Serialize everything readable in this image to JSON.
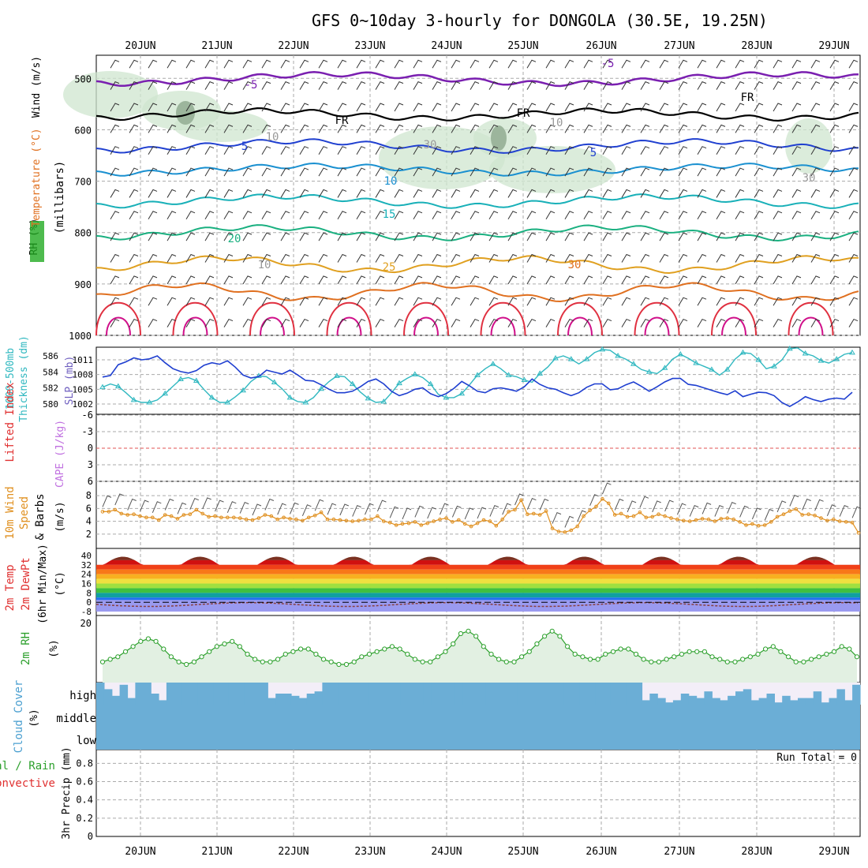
{
  "title": "GFS 0~10day 3-hourly for DONGOLA (30.5E, 19.25N)",
  "x_axis": {
    "dates": [
      "20JUN",
      "21JUN",
      "22JUN",
      "23JUN",
      "24JUN",
      "25JUN",
      "26JUN",
      "27JUN",
      "28JUN",
      "29JUN"
    ]
  },
  "colors": {
    "temp_cold": "#7a1fb0",
    "fr": "#000000",
    "rh": "#c8e6c8",
    "slp": "#1f3fd0",
    "thick": "#30b8c0",
    "wind10": "#e09020",
    "rh2m": "#2ca02c",
    "cloud": "#6baed6"
  },
  "panels": {
    "upper": {
      "labels": {
        "rh": "RH (%)",
        "temp": "Temperature (°C)",
        "wind": "Wind (m/s)",
        "mb": "(millibars)"
      },
      "levels": [
        "500",
        "600",
        "700",
        "800",
        "900",
        "1000"
      ],
      "contour_labels": [
        "-5",
        "-5",
        "FR",
        "FR",
        "FR",
        "5",
        "5",
        "10",
        "15",
        "20",
        "25",
        "30",
        "10",
        "10",
        "30",
        "10",
        "30"
      ]
    },
    "slp": {
      "labels": {
        "thick": "1000-500mb",
        "thick2": "Thickness (dm)",
        "slp": "SLP (mb)"
      },
      "thick_ticks": [
        "586",
        "584",
        "582",
        "580"
      ],
      "slp_ticks": [
        "1011",
        "1008",
        "1005",
        "1002"
      ]
    },
    "li": {
      "labels": {
        "li": "Lifted Index",
        "cape": "CAPE (J/kg)"
      },
      "ticks": [
        "-6",
        "-3",
        "0",
        "3",
        "6"
      ]
    },
    "wind10": {
      "labels": {
        "a": "10m Wind",
        "b": "Speed",
        "c": "& Barbs",
        "unit": "(m/s)"
      },
      "ticks": [
        "8",
        "6",
        "4",
        "2"
      ]
    },
    "t2m": {
      "labels": {
        "a": "2m Temp",
        "b": "2m DewPt",
        "c": "(6hr Min/Max)",
        "unit": "(°C)"
      },
      "ticks": [
        "40",
        "32",
        "24",
        "16",
        "8",
        "0",
        "-8"
      ]
    },
    "rh2m": {
      "labels": {
        "a": "2m RH",
        "unit": "(%)"
      },
      "ticks": [
        "20"
      ]
    },
    "cloud": {
      "labels": {
        "a": "Cloud Cover",
        "unit": "(%)"
      },
      "levels": [
        "high",
        "middle",
        "low"
      ]
    },
    "precip": {
      "labels": {
        "a": "Total / Rain",
        "b": "Convective",
        "c": "3hr Precip (mm)"
      },
      "ticks": [
        "0.8",
        "0.6",
        "0.4",
        "0.2",
        "0"
      ],
      "run_total": "Run Total = 0"
    }
  },
  "chart_data": [
    {
      "type": "line",
      "name_panel": "SLP / Thickness",
      "x_step_hours": 3,
      "series": [
        {
          "name": "SLP (mb)",
          "values": [
            1007.5,
            1007.8,
            1010,
            1010.6,
            1011.4,
            1011,
            1011.2,
            1011.8,
            1010.4,
            1009.2,
            1008.6,
            1008.3,
            1008.8,
            1009.9,
            1010.4,
            1010.1,
            1010.8,
            1009.5,
            1007.9,
            1007.3,
            1007.6,
            1008.9,
            1008.5,
            1008.1,
            1008.9,
            1007.9,
            1006.8,
            1006.7,
            1005.9,
            1005.0,
            1004.3,
            1004.3,
            1004.6,
            1005.5,
            1006.6,
            1007.1,
            1006.1,
            1004.6,
            1003.7,
            1004.2,
            1005.0,
            1005.3,
            1004.1,
            1003.5,
            1004.1,
            1005.2,
            1006.6,
            1005.7,
            1004.6,
            1004.3,
            1005.1,
            1005.3,
            1005.0,
            1004.6,
            1005.5,
            1007.1,
            1006.0,
            1005.3,
            1005.0,
            1004.3,
            1003.7,
            1004.3,
            1005.4,
            1006.1,
            1006.1,
            1004.9,
            1005.1,
            1005.9,
            1006.5,
            1005.6,
            1004.6,
            1005.5,
            1006.5,
            1007.2,
            1007.2,
            1006.0,
            1005.8,
            1005.3,
            1004.8,
            1004.3,
            1003.9,
            1004.7,
            1003.5,
            1004.0,
            1004.4,
            1004.3,
            1003.7,
            1002.3,
            1001.5,
            1002.4,
            1003.5,
            1002.9,
            1002.5,
            1003.0,
            1003.2,
            1003.0,
            1004.4
          ]
        },
        {
          "name": "1000-500mb Thickness (dm)",
          "values": [
            582.1,
            582.5,
            582.2,
            581.4,
            580.5,
            580.2,
            580.2,
            580.5,
            581.3,
            582.2,
            583.1,
            583.3,
            582.9,
            581.8,
            580.8,
            580.2,
            580.2,
            580.9,
            581.7,
            582.8,
            583.5,
            583.4,
            582.7,
            581.9,
            580.8,
            580.3,
            580.2,
            580.8,
            581.9,
            582.8,
            583.5,
            583.4,
            582.5,
            581.5,
            580.7,
            580.2,
            580.3,
            581.4,
            582.6,
            583.2,
            583.7,
            583.3,
            582.5,
            581.2,
            580.8,
            580.8,
            581.3,
            582.4,
            583.6,
            584.4,
            585.0,
            584.4,
            583.6,
            583.4,
            583.0,
            582.7,
            583.8,
            584.6,
            585.7,
            586.0,
            585.6,
            585.0,
            585.6,
            586.4,
            586.8,
            586.7,
            586.0,
            585.6,
            585.0,
            584.3,
            584.0,
            583.8,
            584.5,
            585.6,
            586.2,
            585.7,
            585.1,
            584.7,
            584.3,
            583.6,
            584.3,
            585.6,
            586.4,
            586.3,
            585.5,
            584.4,
            584.7,
            585.5,
            586.9,
            587.0,
            586.3,
            586.0,
            585.4,
            585.1,
            585.6,
            586.2,
            586.4
          ]
        }
      ]
    },
    {
      "type": "line",
      "name_panel": "10m Wind Speed (m/s)",
      "series": [
        {
          "name": "10m Wind Speed",
          "values": [
            5.5,
            5.5,
            5.8,
            5.2,
            5.0,
            5.1,
            4.8,
            4.6,
            4.6,
            4.2,
            5.0,
            4.8,
            4.4,
            5.0,
            5.1,
            5.8,
            5.2,
            4.7,
            4.8,
            4.6,
            4.6,
            4.6,
            4.5,
            4.3,
            4.2,
            4.5,
            5.0,
            4.8,
            4.3,
            4.6,
            4.4,
            4.3,
            4.1,
            4.6,
            4.9,
            5.4,
            4.3,
            4.3,
            4.2,
            4.1,
            4.0,
            4.1,
            4.3,
            4.3,
            4.8,
            4.0,
            3.8,
            3.4,
            3.6,
            3.7,
            3.9,
            3.4,
            3.7,
            4.0,
            4.3,
            4.5,
            3.9,
            4.2,
            3.6,
            3.2,
            3.7,
            4.2,
            4.0,
            3.3,
            4.3,
            5.5,
            5.8,
            7.3,
            5.1,
            5.2,
            5.0,
            5.6,
            2.9,
            2.4,
            2.3,
            2.6,
            3.2,
            4.8,
            5.7,
            6.3,
            7.5,
            6.8,
            5.0,
            5.2,
            4.7,
            4.8,
            5.4,
            4.6,
            4.7,
            5.1,
            4.8,
            4.5,
            4.3,
            4.1,
            4.0,
            4.2,
            4.4,
            4.3,
            4.0,
            4.4,
            4.5,
            4.3,
            3.9,
            3.4,
            3.6,
            3.3,
            3.4,
            3.9,
            4.7,
            5.1,
            5.6,
            5.9,
            5.0,
            5.1,
            4.9,
            4.5,
            4.1,
            4.3,
            4.0,
            3.9,
            3.8,
            2.2
          ]
        }
      ]
    },
    {
      "type": "line",
      "name_panel": "2m RH (%)",
      "series": [
        {
          "name": "2m RH",
          "values": [
            5,
            6,
            7,
            9,
            11,
            13,
            14,
            13,
            10,
            7,
            5,
            4,
            5,
            7,
            9,
            11,
            12,
            13,
            11,
            8,
            6,
            5,
            5,
            6,
            8,
            9,
            10,
            10,
            8,
            6,
            5,
            4,
            4,
            5,
            7,
            8,
            9,
            10,
            11,
            10,
            8,
            6,
            5,
            5,
            7,
            9,
            12,
            16,
            17,
            15,
            11,
            8,
            6,
            5,
            5,
            7,
            9,
            12,
            15,
            17,
            15,
            11,
            8,
            7,
            6,
            6,
            8,
            9,
            10,
            10,
            8,
            6,
            5,
            5,
            6,
            7,
            8,
            9,
            9,
            9,
            7,
            6,
            5,
            5,
            6,
            7,
            8,
            10,
            11,
            9,
            7,
            5,
            5,
            6,
            7,
            8,
            9,
            11,
            10,
            7
          ]
        }
      ]
    },
    {
      "type": "area",
      "name_panel": "2m Temperature (°C)",
      "series": [
        {
          "name": "2m Temp max",
          "values": [
            37,
            38,
            39,
            40,
            40,
            40,
            40,
            39,
            38
          ]
        }
      ],
      "ylim": [
        -8,
        40
      ]
    },
    {
      "type": "bar",
      "name_panel": "3hr Precip (mm)",
      "series": [
        {
          "name": "3hr Precip",
          "values": [
            0
          ]
        }
      ],
      "ylim": [
        0,
        0.9
      ]
    }
  ]
}
